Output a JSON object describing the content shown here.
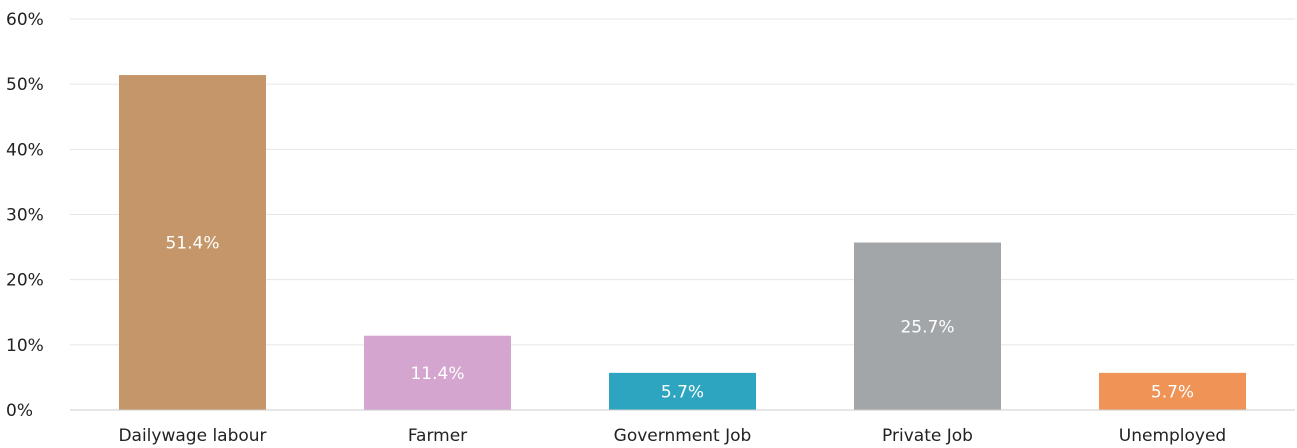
{
  "chart_data": {
    "type": "bar",
    "categories": [
      "Dailywage labour",
      "Farmer",
      "Government Job",
      "Private Job",
      "Unemployed"
    ],
    "values": [
      51.4,
      11.4,
      5.7,
      25.7,
      5.7
    ],
    "data_labels": [
      "51.4%",
      "11.4%",
      "5.7%",
      "25.7%",
      "5.7%"
    ],
    "colors": [
      "#c4966a",
      "#d4a5cf",
      "#2ea5c0",
      "#a3a6a8",
      "#ef9357"
    ],
    "ylim": [
      0,
      60
    ],
    "yticks": [
      0,
      10,
      20,
      30,
      40,
      50,
      60
    ],
    "ytick_labels": [
      "0%",
      "10%",
      "20%",
      "30%",
      "40%",
      "50%",
      "60%"
    ],
    "grid": true,
    "title": "",
    "xlabel": "",
    "ylabel": ""
  }
}
